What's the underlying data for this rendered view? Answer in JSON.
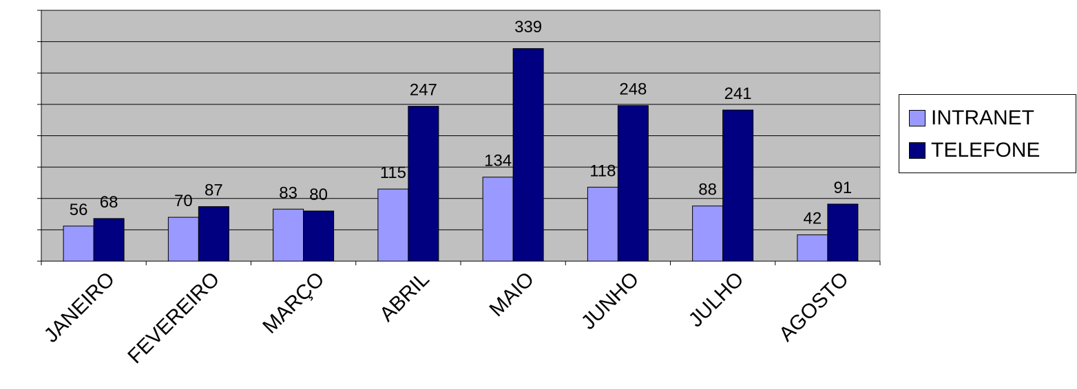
{
  "chart_data": {
    "type": "bar",
    "categories": [
      "JANEIRO",
      "FEVEREIRO",
      "MARÇO",
      "ABRIL",
      "MAIO",
      "JUNHO",
      "JULHO",
      "AGOSTO"
    ],
    "series": [
      {
        "name": "INTRANET",
        "color": "#9999ff",
        "values": [
          56,
          70,
          83,
          115,
          134,
          118,
          88,
          42
        ]
      },
      {
        "name": "TELEFONE",
        "color": "#000080",
        "values": [
          68,
          87,
          80,
          247,
          339,
          248,
          241,
          91
        ]
      }
    ],
    "data_labels": {
      "INTRANET": [
        "56",
        "70",
        "83",
        "115",
        "134",
        "118",
        "88",
        "42"
      ],
      "TELEFONE": [
        "68",
        "87",
        "80",
        "247",
        "",
        "248",
        "241",
        "91"
      ]
    },
    "annotations": [
      "339"
    ],
    "ylim": [
      0,
      400
    ],
    "y_gridline_step": 50,
    "grid": true,
    "plot_background": "#c0c0c0",
    "legend_position": "right",
    "title": "",
    "xlabel": "",
    "ylabel": ""
  }
}
